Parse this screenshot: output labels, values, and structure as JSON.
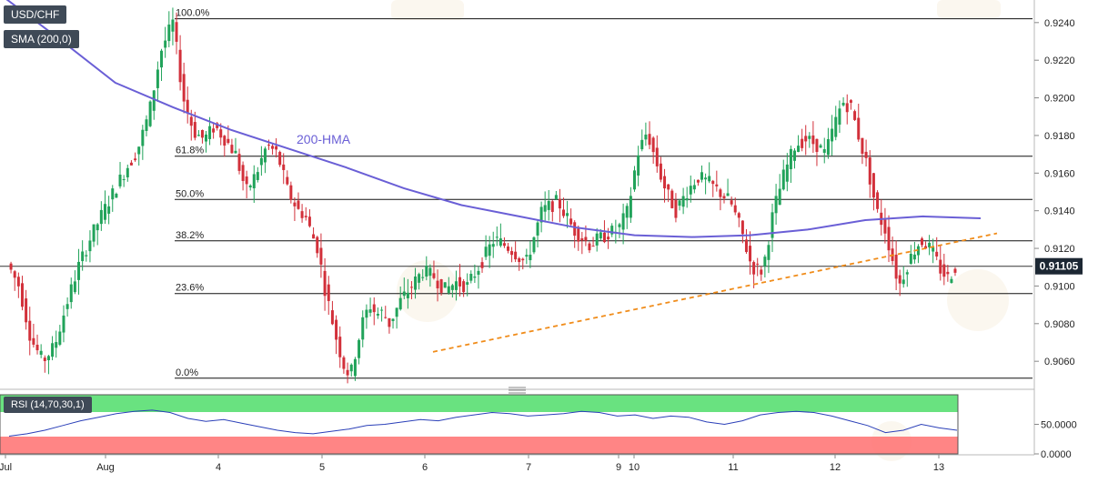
{
  "header": {
    "symbol_label": "USD/CHF",
    "indicator_label": "SMA (200,0)",
    "rsi_label": "RSI (14,70,30,1)"
  },
  "chart_data": {
    "type": "candlestick",
    "pair": "USD/CHF",
    "timeframe_note": "hourly candles (200-HMA)",
    "x_axis": {
      "tick_labels": [
        "Jul",
        "Aug",
        "4",
        "5",
        "6",
        "7",
        "9",
        "10",
        "11",
        "12",
        "13"
      ]
    },
    "y_axis": {
      "ylim": [
        0.9048,
        0.9252
      ],
      "tick_labels": [
        "0.9240",
        "0.9220",
        "0.9200",
        "0.9180",
        "0.9160",
        "0.9140",
        "0.9120",
        "0.9100",
        "0.9080",
        "0.9060"
      ],
      "current_price_label": "0.91105",
      "current_price": 0.91105
    },
    "fibonacci_levels": [
      {
        "label": "100.0%",
        "value": 0.9242
      },
      {
        "label": "61.8%",
        "value": 0.9169
      },
      {
        "label": "50.0%",
        "value": 0.9146
      },
      {
        "label": "38.2%",
        "value": 0.9124
      },
      {
        "label": "23.6%",
        "value": 0.9096
      },
      {
        "label": "0.0%",
        "value": 0.9051
      }
    ],
    "hma_label": "200-HMA",
    "hma_color": "#6a5fd6",
    "trendline_color": "#f08c1a",
    "up_color": "#21a35a",
    "down_color": "#d2303a",
    "price_segments": [
      [
        0.9112,
        0.91,
        0.9072,
        0.906,
        0.9068,
        0.909,
        0.911,
        0.9125,
        0.9138,
        0.915,
        0.9162,
        0.9172,
        0.9192,
        0.9225,
        0.924
      ],
      [
        0.924,
        0.92,
        0.9182,
        0.9178,
        0.9185,
        0.9178,
        0.917,
        0.915,
        0.916,
        0.9175,
        0.917,
        0.915,
        0.914
      ],
      [
        0.914,
        0.9138,
        0.9128,
        0.912,
        0.91,
        0.9085,
        0.907,
        0.9058,
        0.9052,
        0.9068,
        0.9082,
        0.909,
        0.9085,
        0.9086,
        0.908
      ],
      [
        0.908,
        0.9092,
        0.91,
        0.9108,
        0.9105,
        0.9098,
        0.9102,
        0.91,
        0.911
      ],
      [
        0.911,
        0.9125,
        0.912,
        0.9112,
        0.914,
        0.9145,
        0.913,
        0.9122
      ],
      [
        0.9122,
        0.9125,
        0.9128,
        0.913,
        0.914,
        0.917,
        0.9182,
        0.9165,
        0.915,
        0.914
      ],
      [
        0.914,
        0.915,
        0.9158,
        0.9155,
        0.915,
        0.9145,
        0.913,
        0.911,
        0.9108,
        0.914,
        0.916,
        0.9175,
        0.9178,
        0.9175
      ],
      [
        0.9175,
        0.917,
        0.9185,
        0.9198,
        0.9195,
        0.9178,
        0.9162,
        0.914,
        0.913
      ],
      [
        0.913,
        0.9115,
        0.91,
        0.911,
        0.9118,
        0.9124,
        0.9122,
        0.9116,
        0.9108,
        0.9104,
        0.911
      ]
    ],
    "hma_values": [
      0.9255,
      0.9232,
      0.9208,
      0.9195,
      0.9183,
      0.9173,
      0.9163,
      0.9152,
      0.9143,
      0.9137,
      0.9131,
      0.9127,
      0.9126,
      0.9127,
      0.913,
      0.9135,
      0.9137,
      0.9136
    ],
    "trendline": {
      "from": 0.9065,
      "to": 0.9128
    },
    "rsi": {
      "ylim": [
        0,
        100
      ],
      "overbought": 70,
      "oversold": 30,
      "tick_labels": [
        "50.0000",
        "0.0000"
      ],
      "values": [
        30,
        34,
        40,
        48,
        56,
        62,
        68,
        72,
        74,
        70,
        60,
        55,
        58,
        52,
        46,
        40,
        36,
        34,
        38,
        42,
        48,
        50,
        54,
        58,
        56,
        62,
        66,
        70,
        68,
        64,
        66,
        68,
        72,
        70,
        64,
        66,
        60,
        64,
        62,
        54,
        50,
        56,
        66,
        70,
        72,
        70,
        64,
        56,
        48,
        36,
        40,
        50,
        44,
        40
      ]
    }
  }
}
